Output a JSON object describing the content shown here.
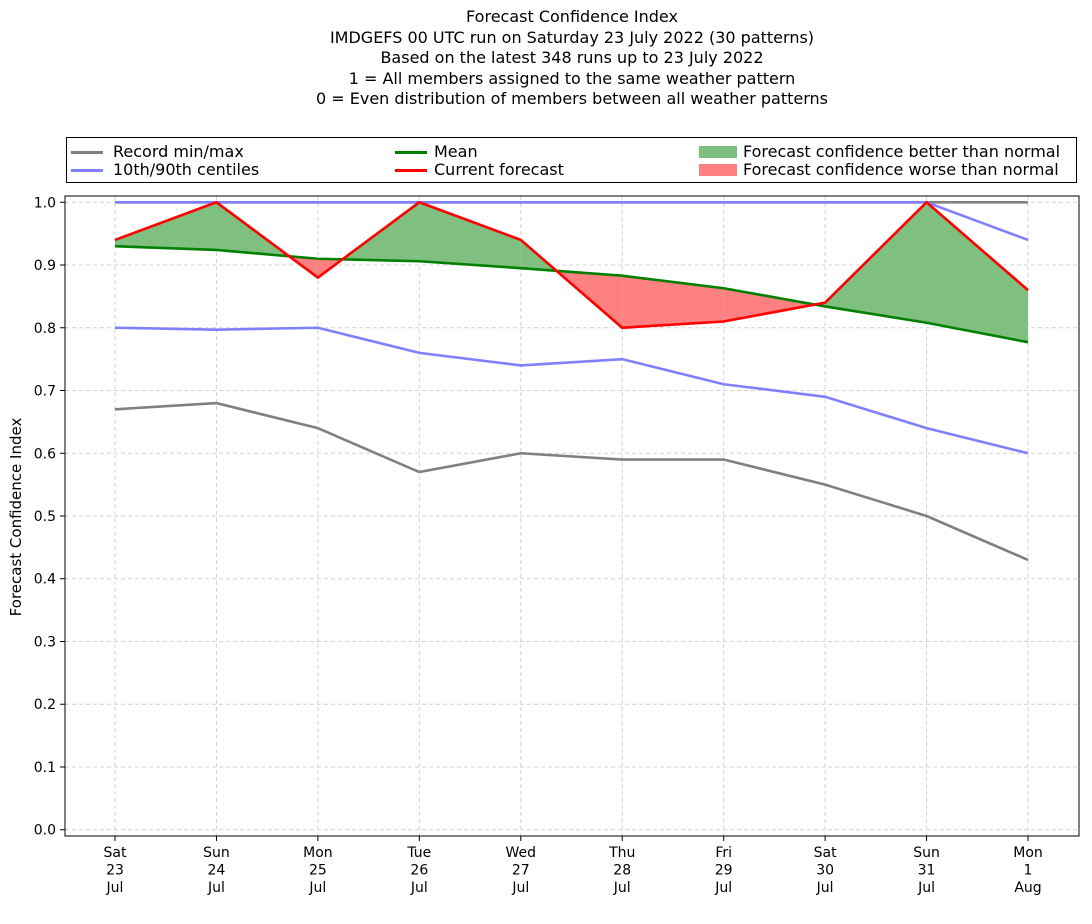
{
  "title_lines": [
    "Forecast Confidence Index",
    "IMDGEFS 00 UTC run on Saturday 23 July 2022 (30 patterns)",
    "Based on the latest 348 runs up to 23 July 2022",
    "1 = All members assigned to the same weather pattern",
    "0 = Even distribution of members between all weather patterns"
  ],
  "legend": {
    "record": "Record min/max",
    "centiles": "10th/90th centiles",
    "mean": "Mean",
    "current": "Current forecast",
    "better": "Forecast confidence better than normal",
    "worse": "Forecast confidence worse than normal"
  },
  "colors": {
    "record": "#808080",
    "centiles": "#8080ff",
    "mean": "#008000",
    "current": "#ff0000",
    "better": "#7fbf7f",
    "worse": "#ff8080",
    "grid": "#d3d3d3"
  },
  "chart_data": {
    "type": "line",
    "ylabel": "Forecast Confidence Index",
    "xlabel": "",
    "ylim": [
      -0.01,
      1.01
    ],
    "yticks": [
      "0.0",
      "0.1",
      "0.2",
      "0.3",
      "0.4",
      "0.5",
      "0.6",
      "0.7",
      "0.8",
      "0.9",
      "1.0"
    ],
    "grid": true,
    "legend_position": "top",
    "categories": [
      [
        "Sat",
        "23",
        "Jul"
      ],
      [
        "Sun",
        "24",
        "Jul"
      ],
      [
        "Mon",
        "25",
        "Jul"
      ],
      [
        "Tue",
        "26",
        "Jul"
      ],
      [
        "Wed",
        "27",
        "Jul"
      ],
      [
        "Thu",
        "28",
        "Jul"
      ],
      [
        "Fri",
        "29",
        "Jul"
      ],
      [
        "Sat",
        "30",
        "Jul"
      ],
      [
        "Sun",
        "31",
        "Jul"
      ],
      [
        "Mon",
        "1",
        "Aug"
      ]
    ],
    "series": [
      {
        "name": "Record min/max",
        "key": "record_max",
        "values": [
          1.0,
          1.0,
          1.0,
          1.0,
          1.0,
          1.0,
          1.0,
          1.0,
          1.0,
          1.0
        ]
      },
      {
        "name": "Record min/max",
        "key": "record_min",
        "values": [
          0.67,
          0.68,
          0.64,
          0.57,
          0.6,
          0.59,
          0.59,
          0.55,
          0.5,
          0.43
        ]
      },
      {
        "name": "10th/90th centiles",
        "key": "p90",
        "values": [
          1.0,
          1.0,
          1.0,
          1.0,
          1.0,
          1.0,
          1.0,
          1.0,
          1.0,
          0.94
        ]
      },
      {
        "name": "10th/90th centiles",
        "key": "p10",
        "values": [
          0.8,
          0.797,
          0.8,
          0.76,
          0.74,
          0.75,
          0.71,
          0.69,
          0.64,
          0.6
        ]
      },
      {
        "name": "Mean",
        "key": "mean",
        "values": [
          0.93,
          0.924,
          0.91,
          0.906,
          0.895,
          0.883,
          0.863,
          0.834,
          0.808,
          0.777
        ]
      },
      {
        "name": "Current forecast",
        "key": "current",
        "values": [
          0.94,
          1.0,
          0.88,
          1.0,
          0.94,
          0.8,
          0.81,
          0.84,
          1.0,
          0.86
        ]
      }
    ]
  }
}
